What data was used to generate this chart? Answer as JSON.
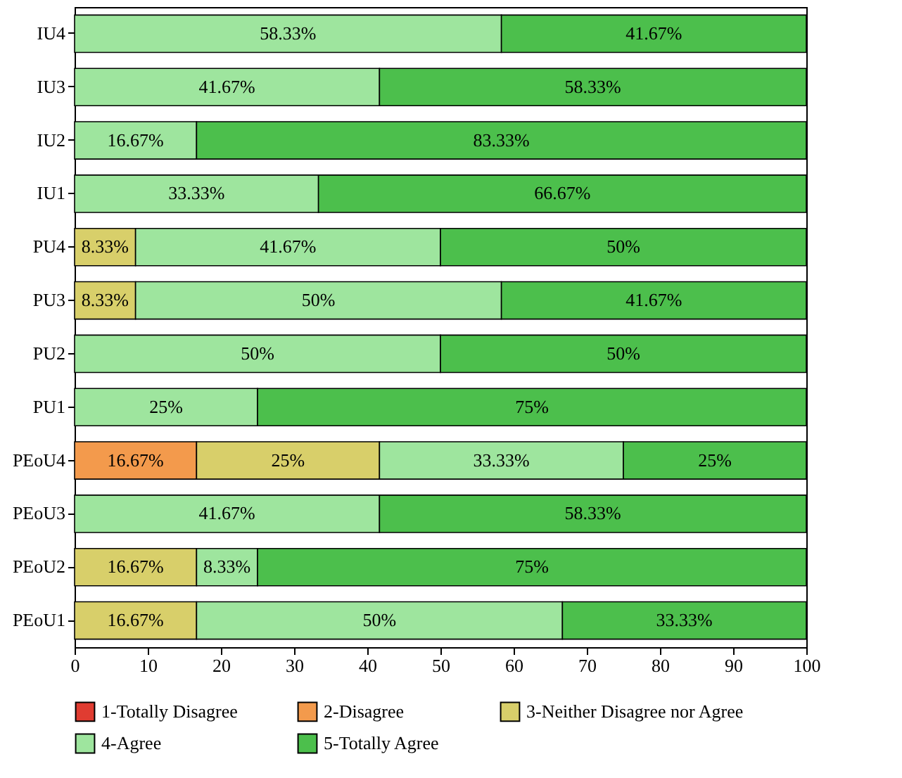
{
  "chart_data": {
    "type": "bar",
    "orientation": "horizontal",
    "stacked": true,
    "legend": "bottom",
    "categories": [
      "IU4",
      "IU3",
      "IU2",
      "IU1",
      "PU4",
      "PU3",
      "PU2",
      "PU1",
      "PEoU4",
      "PEoU3",
      "PEoU2",
      "PEoU1"
    ],
    "xlim": [
      0,
      100
    ],
    "xticks": [
      0,
      10,
      20,
      30,
      40,
      50,
      60,
      70,
      80,
      90,
      100
    ],
    "series": [
      {
        "name": "1-Totally Disagree",
        "color": "#e03c31",
        "values": [
          null,
          null,
          null,
          null,
          null,
          null,
          null,
          null,
          null,
          null,
          null,
          null
        ],
        "value_labels": [
          null,
          null,
          null,
          null,
          null,
          null,
          null,
          null,
          null,
          null,
          null,
          null
        ]
      },
      {
        "name": "2-Disagree",
        "color": "#f39a4c",
        "values": [
          null,
          null,
          null,
          null,
          null,
          null,
          null,
          null,
          16.67,
          null,
          null,
          null
        ],
        "value_labels": [
          null,
          null,
          null,
          null,
          null,
          null,
          null,
          null,
          "16.67%",
          null,
          null,
          null
        ]
      },
      {
        "name": "3-Neither Disagree nor Agree",
        "color": "#d8cf6a",
        "values": [
          null,
          null,
          null,
          null,
          8.33,
          8.33,
          null,
          null,
          25,
          null,
          16.67,
          16.67
        ],
        "value_labels": [
          null,
          null,
          null,
          null,
          "8.33%",
          "8.33%",
          null,
          null,
          "25%",
          null,
          "16.67%",
          "16.67%"
        ]
      },
      {
        "name": "4-Agree",
        "color": "#9ee59e",
        "values": [
          58.33,
          41.67,
          16.67,
          33.33,
          41.67,
          50,
          50,
          25,
          33.33,
          41.67,
          8.33,
          50
        ],
        "value_labels": [
          "58.33%",
          "41.67%",
          "16.67%",
          "33.33%",
          "41.67%",
          "50%",
          "50%",
          "25%",
          "33.33%",
          "41.67%",
          "8.33%",
          "50%"
        ]
      },
      {
        "name": "5-Totally Agree",
        "color": "#4cbf4c",
        "values": [
          41.67,
          58.33,
          83.33,
          66.67,
          50,
          41.67,
          50,
          75,
          25,
          58.33,
          75,
          33.33
        ],
        "value_labels": [
          "41.67%",
          "58.33%",
          "83.33%",
          "66.67%",
          "50%",
          "41.67%",
          "50%",
          "75%",
          "25%",
          "58.33%",
          "75%",
          "33.33%"
        ]
      }
    ]
  }
}
